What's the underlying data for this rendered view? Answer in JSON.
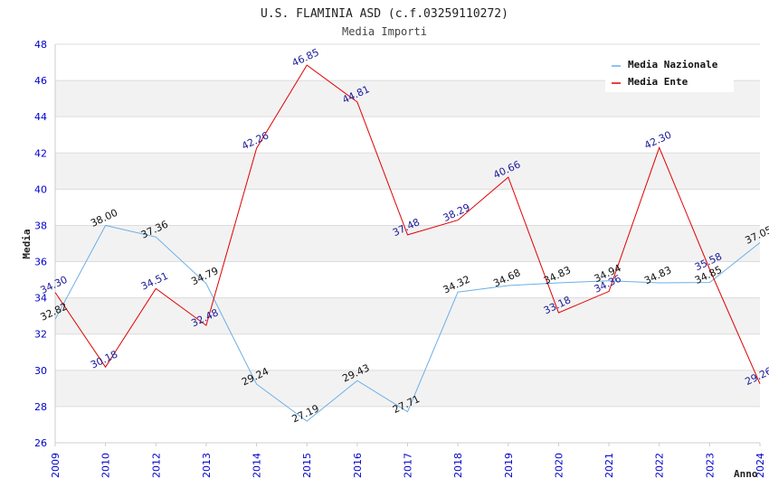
{
  "chart_data": {
    "type": "line",
    "title": "U.S. FLAMINIA ASD (c.f.03259110272)",
    "subtitle": "Media Importi",
    "xlabel": "Anno",
    "ylabel": "Media",
    "ylim": [
      26,
      48
    ],
    "yticks": [
      "26",
      "28",
      "30",
      "32",
      "34",
      "36",
      "38",
      "40",
      "42",
      "44",
      "46",
      "48"
    ],
    "categories": [
      "2009",
      "2010",
      "2012",
      "2013",
      "2014",
      "2015",
      "2016",
      "2017",
      "2018",
      "2019",
      "2020",
      "2021",
      "2022",
      "2023",
      "2024"
    ],
    "legend_position": "top-right",
    "series": [
      {
        "name": "Media Nazionale",
        "color": "#6aaee8",
        "values": [
          32.82,
          38.0,
          37.36,
          34.79,
          29.24,
          27.19,
          29.43,
          27.71,
          34.32,
          34.68,
          34.83,
          34.94,
          34.83,
          34.85,
          37.05
        ],
        "labels": [
          "32.82",
          "38.00",
          "37.36",
          "34.79",
          "29.24",
          "27.19",
          "29.43",
          "27.71",
          "34.32",
          "34.68",
          "34.83",
          "34.94",
          "34.83",
          "34.85",
          "37.05"
        ]
      },
      {
        "name": "Media Ente",
        "color": "#e00000",
        "values": [
          34.3,
          30.18,
          34.51,
          32.48,
          42.26,
          46.85,
          44.81,
          37.48,
          38.29,
          40.66,
          33.18,
          34.36,
          42.3,
          35.58,
          29.26
        ],
        "labels": [
          "34.30",
          "30.18",
          "34.51",
          "32.48",
          "42.26",
          "46.85",
          "44.81",
          "37.48",
          "38.29",
          "40.66",
          "33.18",
          "34.36",
          "42.30",
          "35.58",
          "29.26"
        ]
      }
    ]
  }
}
